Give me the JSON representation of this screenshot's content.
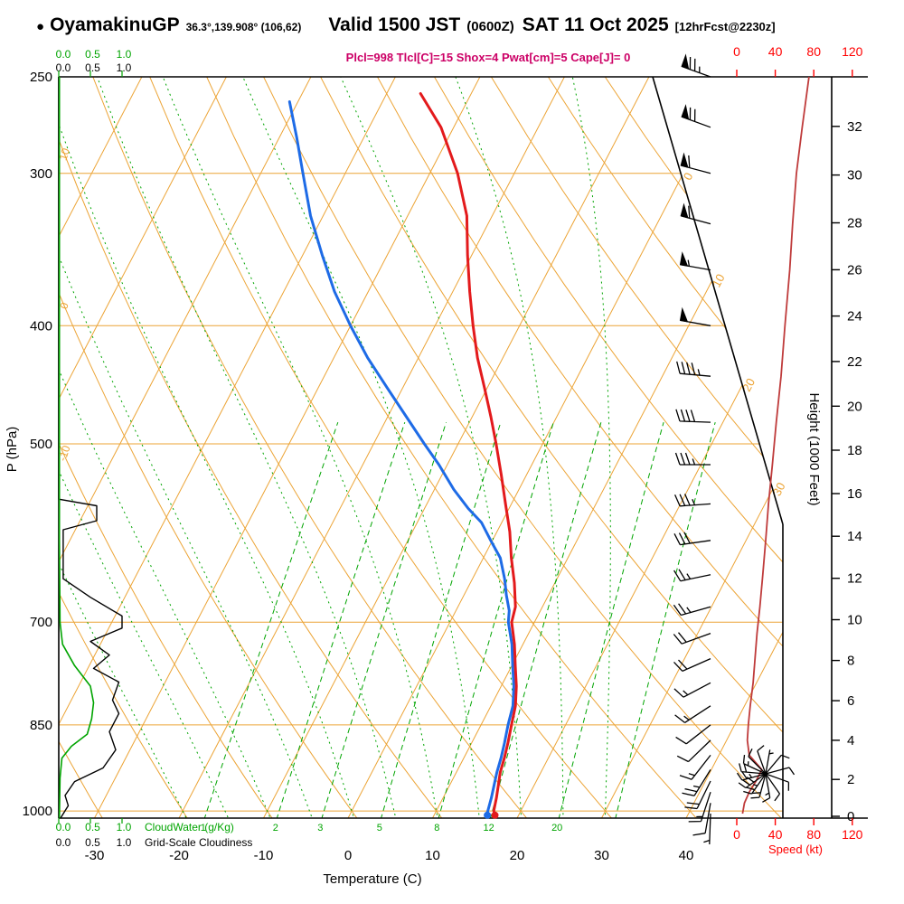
{
  "header": {
    "bullet": "●",
    "station": "OyamakinuGP",
    "coords": "36.3°,139.908° (106,62)",
    "valid": "Valid 1500 JST",
    "valid_z": "(0600Z)",
    "date": "SAT 11 Oct 2025",
    "fcst": "[12hrFcst@2230z]"
  },
  "params_line": "Plcl=998 Tlcl[C]=15 Shox=4 Pwat[cm]=5 Cape[J]= 0",
  "colors": {
    "grid_orange": "#eca436",
    "green": "#00a400",
    "temp_red": "#e31a1c",
    "dew_blue": "#1e6be6",
    "speed_curve": "#bf3b3b",
    "red_axis": "#ff0000",
    "params_magenta": "#cc0066",
    "black": "#000000"
  },
  "chart_data": {
    "type": "skewt-logp-sounding",
    "title": "OyamakinuGP Valid 1500 JST (0600Z) SAT 11 Oct 2025",
    "pressure_axis": {
      "label": "P (hPa)",
      "ticks": [
        250,
        300,
        400,
        500,
        700,
        850,
        1000
      ],
      "range": [
        250,
        1013
      ]
    },
    "temp_axis": {
      "label": "Temperature (C)",
      "ticks": [
        -30,
        -20,
        -10,
        0,
        10,
        20,
        30,
        40
      ],
      "range": [
        -40,
        45
      ]
    },
    "height_axis": {
      "label": "Height (1000 Feet)",
      "ticks": [
        0,
        2,
        4,
        6,
        8,
        10,
        12,
        14,
        16,
        18,
        20,
        22,
        24,
        26,
        28,
        30,
        32
      ]
    },
    "speed_axis": {
      "label": "Speed (kt)",
      "ticks": [
        0,
        40,
        80,
        120
      ]
    },
    "cloud_scales": {
      "ticks": [
        "0.0",
        "0.5",
        "1.0"
      ],
      "cloudwater_label": "CloudWater (g/Kg)",
      "cloudiness_label": "Grid-Scale Cloudiness"
    },
    "isotherm_labels": [
      0,
      10,
      20,
      30
    ],
    "dry_adiabat_labels": [
      10,
      0,
      -10
    ],
    "mixing_ratio_labels": [
      1,
      2,
      3,
      5,
      8,
      12,
      20
    ],
    "mixing_ratio_lines": [
      1,
      2,
      3,
      5,
      8,
      12,
      20,
      30
    ],
    "moist_adiabats": [
      -20,
      -15,
      -10,
      -5,
      0,
      5,
      10,
      15,
      20,
      25,
      30
    ],
    "isotherm_range": [
      -90,
      40,
      10
    ],
    "dry_adiabat_range": [
      -60,
      130,
      10
    ],
    "temperature_profile": [
      [
        258,
        -36.0
      ],
      [
        275,
        -31.5
      ],
      [
        300,
        -26.7
      ],
      [
        325,
        -23.0
      ],
      [
        350,
        -20.5
      ],
      [
        375,
        -18.0
      ],
      [
        400,
        -15.5
      ],
      [
        425,
        -13.0
      ],
      [
        450,
        -10.3
      ],
      [
        475,
        -7.8
      ],
      [
        500,
        -5.5
      ],
      [
        530,
        -3.0
      ],
      [
        560,
        -0.7
      ],
      [
        590,
        1.5
      ],
      [
        620,
        3.3
      ],
      [
        650,
        5.2
      ],
      [
        680,
        6.8
      ],
      [
        700,
        7.3
      ],
      [
        730,
        9.0
      ],
      [
        760,
        10.4
      ],
      [
        790,
        11.8
      ],
      [
        820,
        12.9
      ],
      [
        850,
        13.6
      ],
      [
        880,
        14.3
      ],
      [
        905,
        14.8
      ],
      [
        930,
        15.2
      ],
      [
        950,
        15.7
      ],
      [
        975,
        16.3
      ],
      [
        1000,
        16.8
      ],
      [
        1008,
        17.2
      ]
    ],
    "dewpoint_profile": [
      [
        262,
        -51.0
      ],
      [
        280,
        -48.0
      ],
      [
        300,
        -45.0
      ],
      [
        325,
        -41.5
      ],
      [
        350,
        -37.7
      ],
      [
        375,
        -34.0
      ],
      [
        400,
        -30.0
      ],
      [
        425,
        -26.0
      ],
      [
        450,
        -21.8
      ],
      [
        475,
        -17.8
      ],
      [
        500,
        -14.0
      ],
      [
        520,
        -11.0
      ],
      [
        545,
        -7.7
      ],
      [
        565,
        -4.8
      ],
      [
        580,
        -2.4
      ],
      [
        600,
        -0.2
      ],
      [
        620,
        2.0
      ],
      [
        645,
        3.8
      ],
      [
        665,
        5.0
      ],
      [
        685,
        6.3
      ],
      [
        700,
        6.9
      ],
      [
        730,
        8.7
      ],
      [
        760,
        10.1
      ],
      [
        790,
        11.5
      ],
      [
        820,
        12.6
      ],
      [
        850,
        13.2
      ],
      [
        880,
        13.9
      ],
      [
        905,
        14.4
      ],
      [
        930,
        14.8
      ],
      [
        950,
        15.2
      ],
      [
        975,
        15.7
      ],
      [
        1000,
        16.1
      ],
      [
        1008,
        16.3
      ]
    ],
    "wind_profile": [
      [
        250,
        290,
        75
      ],
      [
        275,
        290,
        68
      ],
      [
        300,
        285,
        62
      ],
      [
        330,
        285,
        58
      ],
      [
        360,
        280,
        55
      ],
      [
        400,
        280,
        50
      ],
      [
        440,
        275,
        46
      ],
      [
        480,
        272,
        41
      ],
      [
        520,
        270,
        37
      ],
      [
        560,
        266,
        33
      ],
      [
        600,
        262,
        30
      ],
      [
        640,
        258,
        27
      ],
      [
        680,
        254,
        24
      ],
      [
        715,
        250,
        21
      ],
      [
        750,
        246,
        19
      ],
      [
        785,
        242,
        17
      ],
      [
        820,
        237,
        14
      ],
      [
        850,
        232,
        12
      ],
      [
        875,
        226,
        11
      ],
      [
        900,
        218,
        13
      ],
      [
        925,
        212,
        26
      ],
      [
        945,
        206,
        20
      ],
      [
        965,
        198,
        13
      ],
      [
        985,
        190,
        8
      ],
      [
        1005,
        182,
        6
      ]
    ],
    "surface_fan": {
      "dirs": [
        10,
        40,
        75,
        110,
        145,
        170,
        195,
        215,
        235,
        255,
        275,
        295,
        315,
        340
      ],
      "speeds": [
        5,
        8,
        10,
        8,
        12,
        15,
        20,
        25,
        30,
        25,
        20,
        15,
        12,
        8
      ]
    },
    "cloudiness_profile": [
      [
        250,
        0.0
      ],
      [
        555,
        0.0
      ],
      [
        562,
        0.6
      ],
      [
        578,
        0.6
      ],
      [
        588,
        0.07
      ],
      [
        645,
        0.07
      ],
      [
        668,
        0.5
      ],
      [
        692,
        1.0
      ],
      [
        708,
        1.0
      ],
      [
        726,
        0.5
      ],
      [
        745,
        0.8
      ],
      [
        764,
        0.55
      ],
      [
        784,
        0.95
      ],
      [
        811,
        0.85
      ],
      [
        832,
        0.95
      ],
      [
        861,
        0.8
      ],
      [
        891,
        0.9
      ],
      [
        922,
        0.7
      ],
      [
        946,
        0.25
      ],
      [
        971,
        0.1
      ],
      [
        990,
        0.15
      ],
      [
        1013,
        0.03
      ]
    ],
    "cloudwater_profile": [
      [
        250,
        0.01
      ],
      [
        600,
        0.01
      ],
      [
        700,
        0.02
      ],
      [
        730,
        0.06
      ],
      [
        760,
        0.25
      ],
      [
        790,
        0.5
      ],
      [
        815,
        0.55
      ],
      [
        840,
        0.52
      ],
      [
        865,
        0.45
      ],
      [
        885,
        0.2
      ],
      [
        905,
        0.05
      ],
      [
        940,
        0.02
      ],
      [
        1013,
        0.01
      ]
    ]
  }
}
